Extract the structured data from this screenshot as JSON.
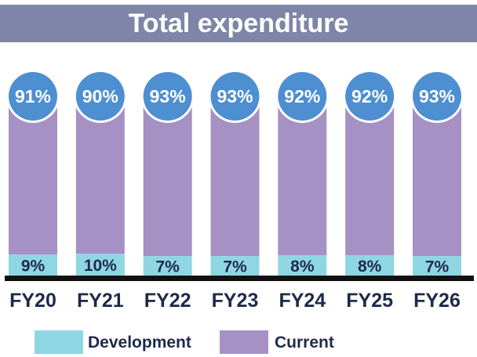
{
  "chart_data": {
    "type": "bar",
    "stacked": true,
    "title": "Total expenditure",
    "categories": [
      "FY20",
      "FY21",
      "FY22",
      "FY23",
      "FY24",
      "FY25",
      "FY26"
    ],
    "series": [
      {
        "name": "Development",
        "values": [
          9,
          10,
          7,
          7,
          8,
          8,
          7
        ],
        "labels": [
          "9%",
          "10%",
          "7%",
          "7%",
          "8%",
          "8%",
          "7%"
        ],
        "color": "#8fd6e3"
      },
      {
        "name": "Current",
        "values": [
          91,
          90,
          93,
          93,
          92,
          92,
          93
        ],
        "labels": [
          "91%",
          "90%",
          "93%",
          "93%",
          "92%",
          "92%",
          "93%"
        ],
        "color": "#a591c4"
      }
    ],
    "label_circle_color": "#4d8fd1",
    "axis_color": "#111111",
    "ylim": [
      0,
      100
    ],
    "legend_position": "bottom"
  }
}
